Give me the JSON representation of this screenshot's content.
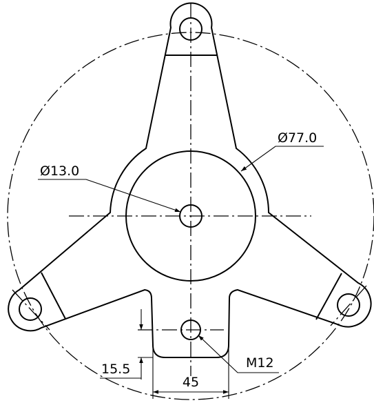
{
  "dimensions": {
    "outer_diameter": "Ø77.0",
    "hole_diameter": "Ø13.0",
    "thread": "M12",
    "offset": "15.5",
    "width": "45"
  }
}
